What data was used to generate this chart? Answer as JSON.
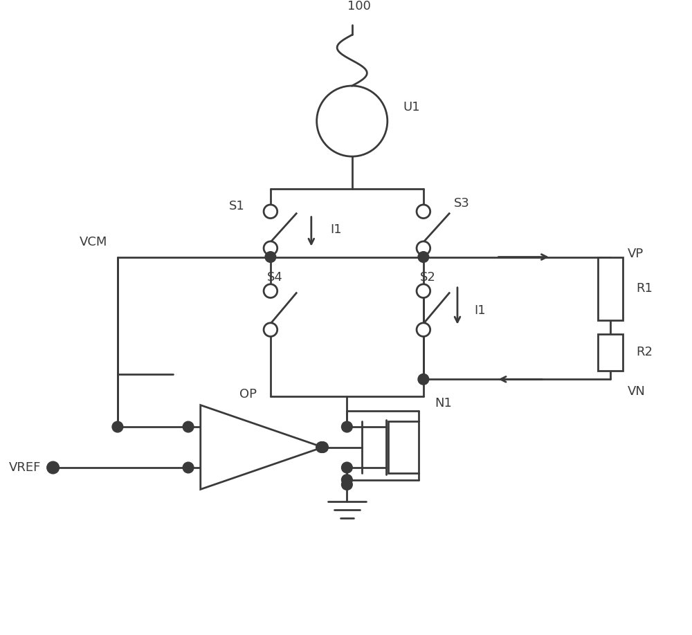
{
  "bg_color": "#ffffff",
  "line_color": "#3a3a3a",
  "line_width": 2.0,
  "fig_width": 10.0,
  "fig_height": 9.18,
  "xlim": [
    0,
    10
  ],
  "ylim": [
    0,
    9.18
  ]
}
